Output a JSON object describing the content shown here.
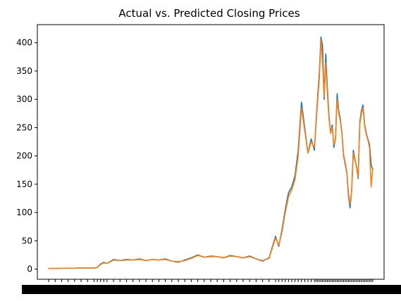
{
  "chart_data": {
    "type": "line",
    "title": "Actual vs. Predicted Closing Prices",
    "xlabel": "",
    "ylabel": "",
    "ylim": [
      -18,
      432
    ],
    "yticks": [
      0,
      50,
      100,
      150,
      200,
      250,
      300,
      350,
      400
    ],
    "grid": false,
    "legend": "none",
    "x_tick_labels_note": "dense overlapping date tick labels rendered as an illegible black band",
    "x": [
      0,
      20,
      40,
      60,
      80,
      100,
      120,
      140,
      150,
      160,
      170,
      180,
      200,
      220,
      240,
      260,
      280,
      300,
      320,
      340,
      360,
      380,
      400,
      420,
      440,
      460,
      480,
      500,
      520,
      540,
      560,
      580,
      600,
      620,
      640,
      660,
      680,
      700,
      710,
      720,
      730,
      740,
      750,
      760,
      770,
      780,
      790,
      800,
      810,
      820,
      825,
      830,
      835,
      840,
      845,
      850,
      855,
      860,
      865,
      870,
      875,
      880,
      885,
      890,
      895,
      900,
      905,
      910,
      915,
      920,
      925,
      930,
      935,
      940,
      945,
      950,
      955,
      960,
      965,
      970,
      975,
      980,
      985,
      990,
      995,
      1000
    ],
    "series": [
      {
        "color": "#1f77b4",
        "values": [
          1,
          1,
          1.5,
          1.5,
          1.5,
          2,
          2,
          2,
          3,
          9,
          12,
          10,
          17,
          15,
          17,
          16,
          18,
          15,
          17,
          16,
          18,
          14,
          12,
          16,
          20,
          25,
          21,
          23,
          22,
          20,
          24,
          22,
          20,
          23,
          18,
          14,
          20,
          58,
          40,
          70,
          105,
          135,
          145,
          165,
          210,
          295,
          250,
          205,
          230,
          210,
          260,
          305,
          345,
          410,
          395,
          300,
          380,
          320,
          270,
          240,
          255,
          215,
          230,
          310,
          280,
          265,
          240,
          200,
          185,
          170,
          130,
          108,
          140,
          210,
          195,
          180,
          160,
          260,
          280,
          290,
          255,
          240,
          230,
          220,
          185,
          175
        ]
      },
      {
        "color": "#ff7f0e",
        "values": [
          1,
          1,
          1.5,
          1.5,
          1.5,
          2,
          2,
          2,
          3,
          8,
          11,
          10,
          16,
          15,
          16,
          16,
          17,
          15,
          17,
          16,
          17,
          14,
          13,
          15,
          19,
          24,
          21,
          22,
          22,
          20,
          23,
          22,
          20,
          22,
          18,
          15,
          19,
          55,
          42,
          66,
          100,
          128,
          140,
          158,
          200,
          285,
          245,
          205,
          225,
          215,
          255,
          298,
          335,
          405,
          365,
          305,
          365,
          310,
          265,
          240,
          250,
          220,
          228,
          300,
          275,
          262,
          238,
          203,
          188,
          172,
          135,
          115,
          138,
          205,
          192,
          182,
          162,
          255,
          275,
          285,
          252,
          238,
          228,
          215,
          145,
          178
        ]
      }
    ]
  }
}
